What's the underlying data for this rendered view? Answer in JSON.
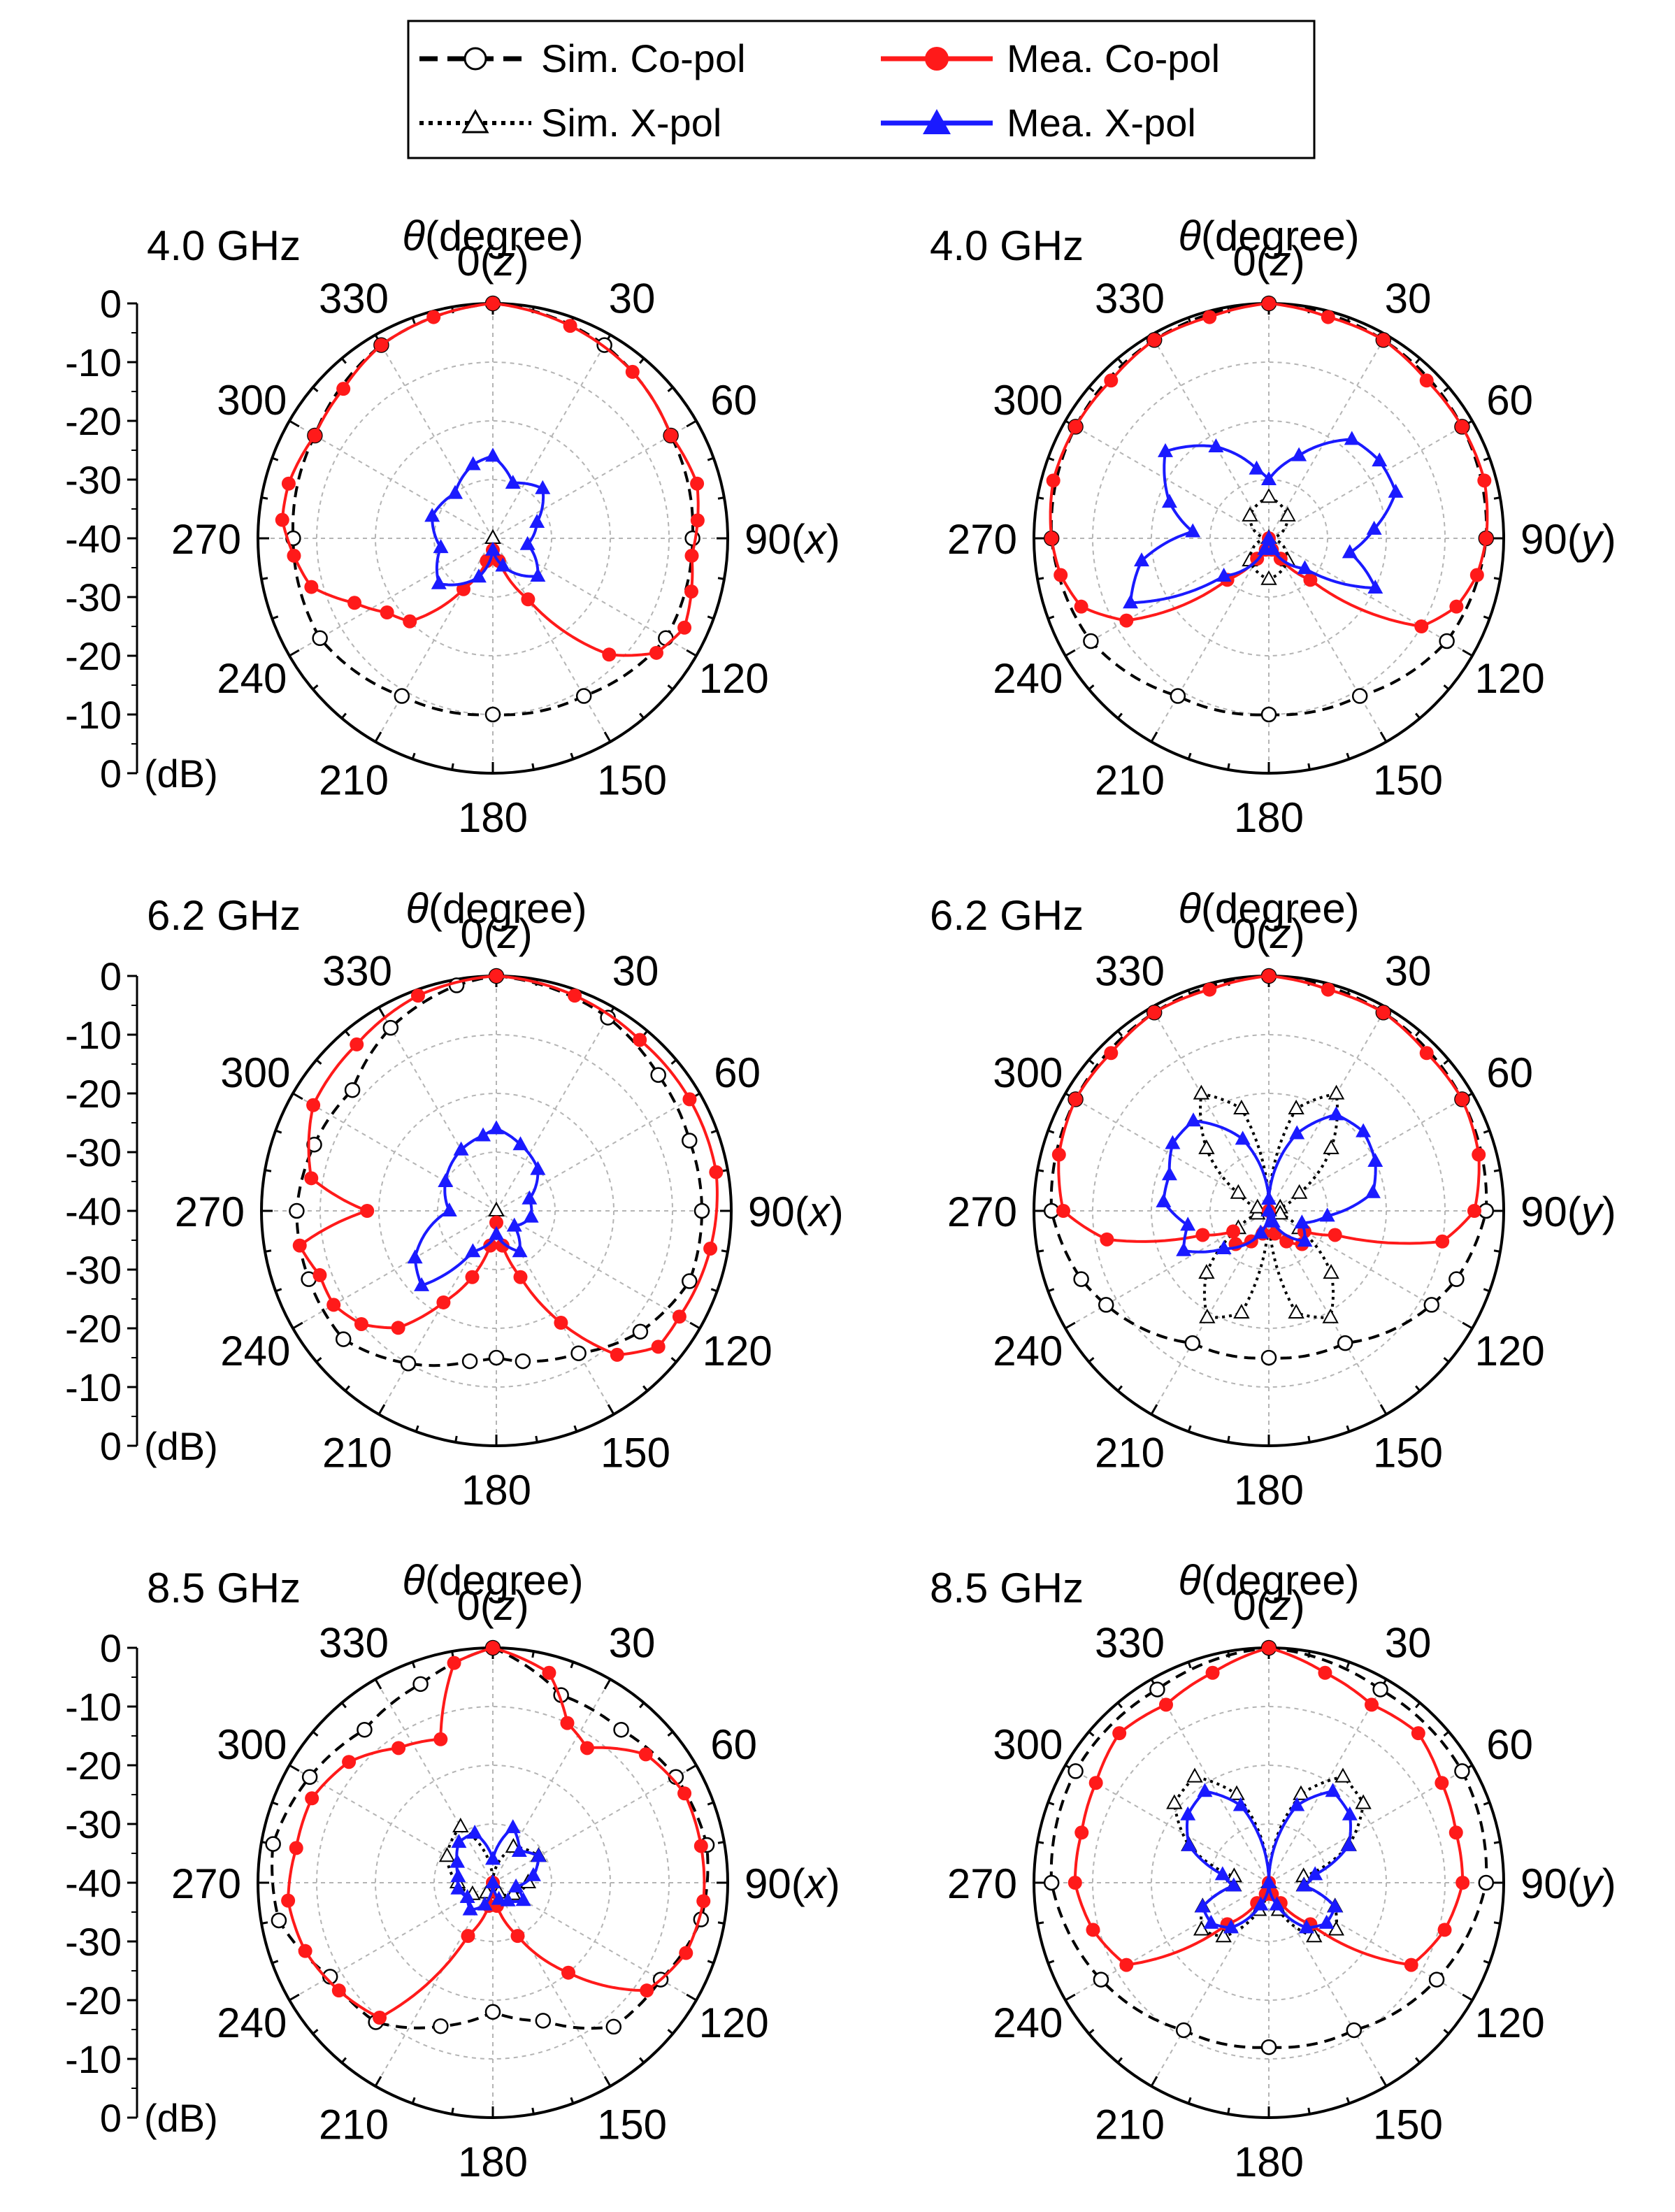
{
  "legend": {
    "sim_co_label": "Sim. Co-pol",
    "sim_x_label": "Sim. X-pol",
    "mea_co_label": "Mea. Co-pol",
    "mea_x_label": "Mea. X-pol"
  },
  "colors": {
    "sim": "#000000",
    "mea_co": "#ff1a1a",
    "mea_x": "#1a1aff",
    "grid": "#b4b4b4"
  },
  "theta_label_prefix": "θ",
  "theta_label_suffix": "(degree)",
  "db_unit": "(dB)",
  "radial_scale_labels": [
    "0",
    "-10",
    "-20",
    "-30",
    "-40",
    "-30",
    "-20",
    "-10",
    "0"
  ],
  "angle_labels_x": [
    "0(z)",
    "30",
    "60",
    "90(x)",
    "120",
    "150",
    "180",
    "210",
    "240",
    "270",
    "300",
    "330"
  ],
  "angle_labels_y": [
    "0(z)",
    "30",
    "60",
    "90(y)",
    "120",
    "150",
    "180",
    "210",
    "240",
    "270",
    "300",
    "330"
  ],
  "chart_data": [
    {
      "type": "polar",
      "id": "p40x",
      "title": "4.0 GHz",
      "plane": "x",
      "r_range_db": [
        -40,
        0
      ],
      "series": [
        {
          "name": "Sim. Co-pol",
          "theta": [
            0,
            30,
            60,
            90,
            120,
            150,
            180,
            210,
            240,
            270,
            300,
            330
          ],
          "db": [
            0,
            -2,
            -5,
            -6,
            -6,
            -9,
            -10,
            -9,
            -6,
            -6,
            -5,
            -2
          ]
        },
        {
          "name": "Sim. X-pol",
          "theta": [
            0,
            90,
            180,
            270
          ],
          "db": [
            -40,
            -40,
            -40,
            -40
          ]
        },
        {
          "name": "Mea. Co-pol",
          "theta": [
            0,
            20,
            40,
            60,
            75,
            85,
            95,
            105,
            115,
            125,
            135,
            150,
            165,
            180,
            195,
            210,
            225,
            235,
            245,
            255,
            265,
            275,
            285,
            300,
            315,
            330,
            345
          ],
          "db": [
            0,
            -1.5,
            -3,
            -5,
            -4,
            -5,
            -6,
            -5,
            -4,
            -6,
            -12,
            -28,
            -36,
            -38,
            -36,
            -30,
            -20,
            -18,
            -14,
            -8,
            -6,
            -4,
            -4,
            -5,
            -4,
            -2,
            -1
          ]
        },
        {
          "name": "Mea. X-pol",
          "theta": [
            0,
            20,
            45,
            70,
            100,
            130,
            160,
            180,
            200,
            230,
            260,
            290,
            320,
            345
          ],
          "db": [
            -26,
            -30,
            -28,
            -32,
            -34,
            -30,
            -35,
            -38,
            -33,
            -28,
            -31,
            -29,
            -30,
            -27
          ]
        }
      ]
    },
    {
      "type": "polar",
      "id": "p40y",
      "title": "4.0 GHz",
      "plane": "y",
      "r_range_db": [
        -40,
        0
      ],
      "series": [
        {
          "name": "Sim. Co-pol",
          "theta": [
            0,
            30,
            60,
            90,
            120,
            150,
            180,
            210,
            240,
            270,
            300,
            330
          ],
          "db": [
            0,
            -1,
            -2,
            -3,
            -5,
            -9,
            -10,
            -9,
            -5,
            -3,
            -2,
            -1
          ]
        },
        {
          "name": "Sim. X-pol",
          "theta": [
            0,
            40,
            90,
            140,
            180,
            220,
            270,
            320
          ],
          "db": [
            -33,
            -35,
            -40,
            -35,
            -33,
            -35,
            -40,
            -35
          ]
        },
        {
          "name": "Mea. Co-pol",
          "theta": [
            0,
            15,
            30,
            45,
            60,
            75,
            90,
            100,
            110,
            120,
            135,
            150,
            165,
            180,
            195,
            210,
            225,
            240,
            250,
            260,
            270,
            285,
            300,
            315,
            330,
            345
          ],
          "db": [
            0,
            -1,
            -1,
            -2,
            -2,
            -2,
            -3,
            -4,
            -6,
            -10,
            -30,
            -36,
            -38,
            -40,
            -38,
            -36,
            -30,
            -12,
            -6,
            -4,
            -3,
            -2,
            -2,
            -2,
            -1,
            -1
          ]
        },
        {
          "name": "Mea. X-pol",
          "theta": [
            0,
            20,
            40,
            55,
            70,
            85,
            100,
            115,
            130,
            160,
            180,
            200,
            230,
            245,
            260,
            275,
            290,
            310,
            330,
            350
          ],
          "db": [
            -30,
            -25,
            -18,
            -17,
            -17,
            -22,
            -26,
            -20,
            -32,
            -38,
            -40,
            -38,
            -30,
            -14,
            -18,
            -27,
            -22,
            -17,
            -22,
            -28
          ]
        }
      ]
    },
    {
      "type": "polar",
      "id": "p62x",
      "title": "6.2 GHz",
      "plane": "x",
      "r_range_db": [
        -40,
        0
      ],
      "series": [
        {
          "name": "Sim. Co-pol",
          "theta": [
            0,
            30,
            50,
            70,
            90,
            110,
            130,
            150,
            170,
            180,
            190,
            210,
            230,
            250,
            270,
            290,
            310,
            330,
            350
          ],
          "db": [
            0,
            -2,
            -4,
            -5,
            -5,
            -5,
            -8,
            -12,
            -14,
            -15,
            -14,
            -10,
            -6,
            -6,
            -6,
            -7,
            -8,
            -4,
            -1
          ]
        },
        {
          "name": "Sim. X-pol",
          "theta": [
            0,
            90,
            180,
            270
          ],
          "db": [
            -40,
            -40,
            -40,
            -40
          ]
        },
        {
          "name": "Mea. Co-pol",
          "theta": [
            0,
            20,
            40,
            60,
            80,
            100,
            120,
            130,
            140,
            150,
            160,
            170,
            180,
            190,
            200,
            210,
            220,
            230,
            240,
            250,
            260,
            270,
            280,
            300,
            320,
            340
          ],
          "db": [
            0,
            -1,
            -2,
            -2,
            -2,
            -3,
            -4,
            -4,
            -8,
            -18,
            -28,
            -34,
            -38,
            -34,
            -28,
            -22,
            -14,
            -10,
            -8,
            -8,
            -6,
            -18,
            -8,
            -4,
            -3,
            -1
          ]
        },
        {
          "name": "Mea. X-pol",
          "theta": [
            0,
            20,
            45,
            70,
            100,
            130,
            150,
            180,
            210,
            225,
            240,
            270,
            300,
            330,
            350
          ],
          "db": [
            -26,
            -28,
            -30,
            -34,
            -34,
            -36,
            -32,
            -36,
            -32,
            -22,
            -24,
            -32,
            -30,
            -28,
            -27
          ]
        }
      ]
    },
    {
      "type": "polar",
      "id": "p62y",
      "title": "6.2 GHz",
      "plane": "y",
      "r_range_db": [
        -40,
        0
      ],
      "series": [
        {
          "name": "Sim. Co-pol",
          "theta": [
            0,
            30,
            60,
            90,
            110,
            120,
            150,
            180,
            210,
            240,
            250,
            270,
            300,
            330
          ],
          "db": [
            0,
            -1,
            -2,
            -3,
            -6,
            -8,
            -14,
            -15,
            -14,
            -8,
            -6,
            -3,
            -2,
            -1
          ]
        },
        {
          "name": "Sim. X-pol",
          "theta": [
            0,
            15,
            30,
            45,
            60,
            75,
            90,
            105,
            120,
            135,
            150,
            165,
            180,
            195,
            210,
            225,
            240,
            255,
            270,
            285,
            300,
            315,
            330,
            345
          ],
          "db": [
            -40,
            -22,
            -17,
            -25,
            -34,
            -38,
            -40,
            -38,
            -34,
            -25,
            -19,
            -22,
            -40,
            -22,
            -19,
            -25,
            -34,
            -38,
            -40,
            -38,
            -34,
            -25,
            -17,
            -22
          ]
        },
        {
          "name": "Mea. Co-pol",
          "theta": [
            0,
            15,
            30,
            45,
            60,
            75,
            90,
            100,
            110,
            120,
            135,
            150,
            165,
            180,
            195,
            210,
            225,
            240,
            250,
            260,
            270,
            285,
            300,
            315,
            330,
            345
          ],
          "db": [
            0,
            -1,
            -1,
            -2,
            -2,
            -3,
            -5,
            -10,
            -28,
            -33,
            -32,
            -34,
            -36,
            -40,
            -36,
            -34,
            -32,
            -33,
            -28,
            -12,
            -5,
            -3,
            -2,
            -2,
            -1,
            -1
          ]
        },
        {
          "name": "Mea. X-pol",
          "theta": [
            0,
            20,
            35,
            50,
            65,
            80,
            95,
            110,
            130,
            160,
            180,
            200,
            230,
            245,
            260,
            275,
            290,
            305,
            320,
            340
          ],
          "db": [
            -38,
            -26,
            -20,
            -19,
            -20,
            -22,
            -30,
            -34,
            -32,
            -38,
            -40,
            -36,
            -30,
            -24,
            -26,
            -22,
            -22,
            -20,
            -20,
            -27
          ]
        }
      ]
    },
    {
      "type": "polar",
      "id": "p85x",
      "title": "8.5 GHz",
      "plane": "x",
      "r_range_db": [
        -40,
        0
      ],
      "series": [
        {
          "name": "Sim. Co-pol",
          "theta": [
            0,
            20,
            40,
            60,
            80,
            100,
            120,
            140,
            160,
            180,
            200,
            220,
            240,
            260,
            280,
            300,
            320,
            340
          ],
          "db": [
            0,
            -6,
            -6,
            -4,
            -3,
            -4,
            -7,
            -8,
            -15,
            -18,
            -14,
            -9,
            -8,
            -3,
            -2,
            -4,
            -6,
            -4
          ]
        },
        {
          "name": "Sim. X-pol",
          "theta": [
            0,
            30,
            60,
            90,
            120,
            150,
            180,
            210,
            240,
            270,
            300,
            330
          ],
          "db": [
            -40,
            -33,
            -31,
            -34,
            -36,
            -38,
            -40,
            -38,
            -36,
            -34,
            -31,
            -29
          ]
        },
        {
          "name": "Mea. Co-pol",
          "theta": [
            0,
            15,
            25,
            35,
            50,
            65,
            80,
            95,
            110,
            125,
            140,
            155,
            170,
            180,
            190,
            205,
            220,
            235,
            250,
            265,
            280,
            295,
            310,
            325,
            340,
            350
          ],
          "db": [
            0,
            -3,
            -10,
            -12,
            -6,
            -4,
            -4,
            -4,
            -5,
            -8,
            -20,
            -30,
            -36,
            -40,
            -36,
            -30,
            -10,
            -8,
            -6,
            -5,
            -6,
            -6,
            -8,
            -12,
            -14,
            -2
          ]
        },
        {
          "name": "Mea. X-pol",
          "theta": [
            0,
            20,
            40,
            60,
            80,
            100,
            120,
            140,
            160,
            180,
            200,
            220,
            240,
            260,
            280,
            300,
            320,
            340
          ],
          "db": [
            -36,
            -30,
            -33,
            -31,
            -33,
            -36,
            -34,
            -36,
            -37,
            -40,
            -36,
            -34,
            -35,
            -34,
            -34,
            -33,
            -31,
            -31
          ]
        }
      ]
    },
    {
      "type": "polar",
      "id": "p85y",
      "title": "8.5 GHz",
      "plane": "y",
      "r_range_db": [
        -40,
        0
      ],
      "series": [
        {
          "name": "Sim. Co-pol",
          "theta": [
            0,
            30,
            60,
            90,
            120,
            150,
            180,
            210,
            240,
            270,
            300,
            330
          ],
          "db": [
            0,
            -2,
            -2,
            -3,
            -7,
            -11,
            -12,
            -11,
            -7,
            -3,
            -2,
            -2
          ]
        },
        {
          "name": "Sim. X-pol",
          "theta": [
            0,
            20,
            35,
            50,
            65,
            80,
            95,
            110,
            125,
            140,
            160,
            180,
            200,
            220,
            235,
            250,
            265,
            280,
            295,
            310,
            325,
            340
          ],
          "db": [
            -40,
            -24,
            -18,
            -19,
            -25,
            -34,
            -34,
            -28,
            -26,
            -28,
            -35,
            -40,
            -35,
            -28,
            -26,
            -28,
            -34,
            -34,
            -25,
            -19,
            -18,
            -24
          ]
        },
        {
          "name": "Mea. Co-pol",
          "theta": [
            0,
            15,
            30,
            45,
            60,
            75,
            90,
            105,
            120,
            135,
            150,
            165,
            180,
            195,
            210,
            225,
            240,
            255,
            270,
            285,
            300,
            315,
            330,
            345
          ],
          "db": [
            0,
            -3,
            -5,
            -4,
            -6,
            -7,
            -7,
            -9,
            -12,
            -30,
            -36,
            -38,
            -40,
            -38,
            -36,
            -30,
            -12,
            -9,
            -7,
            -7,
            -6,
            -4,
            -5,
            -3
          ]
        },
        {
          "name": "Mea. X-pol",
          "theta": [
            0,
            20,
            35,
            50,
            65,
            80,
            95,
            110,
            125,
            140,
            160,
            180,
            200,
            220,
            235,
            250,
            265,
            280,
            295,
            310,
            325,
            340
          ],
          "db": [
            -40,
            -26,
            -21,
            -22,
            -25,
            -32,
            -34,
            -28,
            -28,
            -30,
            -36,
            -40,
            -36,
            -30,
            -28,
            -28,
            -34,
            -32,
            -25,
            -22,
            -21,
            -26
          ]
        }
      ]
    }
  ]
}
